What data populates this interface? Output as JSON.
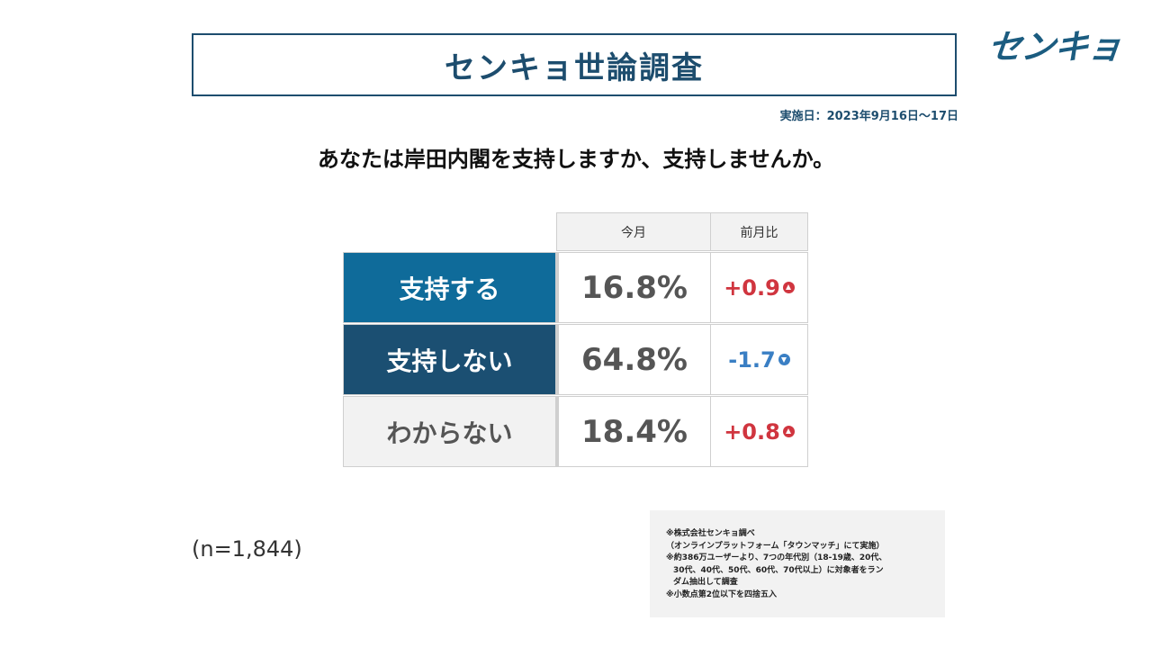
{
  "header": {
    "title": "センキョ世論調査",
    "logo_text": "センキョ",
    "date": "実施日：2023年9月16日～17日",
    "question": "あなたは岸田内閣を支持しますか、支持しませんか。"
  },
  "table": {
    "col_current": "今月",
    "col_change": "前月比"
  },
  "chart_data": {
    "type": "table",
    "columns": [
      "今月",
      "前月比"
    ],
    "rows": [
      {
        "label": "支持する",
        "value": "16.8%",
        "change": "+0.9",
        "direction": "up",
        "label_bg": "#0f6b9a",
        "label_color": "#ffffff",
        "change_color": "#d0353f"
      },
      {
        "label": "支持しない",
        "value": "64.8%",
        "change": "-1.7",
        "direction": "down",
        "label_bg": "#1b4f72",
        "label_color": "#ffffff",
        "change_color": "#3a7fc4"
      },
      {
        "label": "わからない",
        "value": "18.4%",
        "change": "+0.8",
        "direction": "up",
        "label_bg": "#f2f2f2",
        "label_color": "#555555",
        "change_color": "#d0353f"
      }
    ]
  },
  "sample": "(n=1,844)",
  "notes": [
    {
      "text": "※株式会社センキョ調べ",
      "indent": false
    },
    {
      "text": "（オンラインプラットフォーム「タウンマッチ」にて実施）",
      "indent": false
    },
    {
      "text": "※約386万ユーザーより、7つの年代別（18-19歳、20代、",
      "indent": false
    },
    {
      "text": "30代、40代、50代、60代、70代以上）に対象者をラン",
      "indent": true
    },
    {
      "text": "ダム抽出して調査",
      "indent": true
    },
    {
      "text": "※小数点第2位以下を四捨五入",
      "indent": false
    }
  ],
  "colors": {
    "brand": "#1d4d6e",
    "up": "#d0353f",
    "down": "#3a7fc4"
  }
}
